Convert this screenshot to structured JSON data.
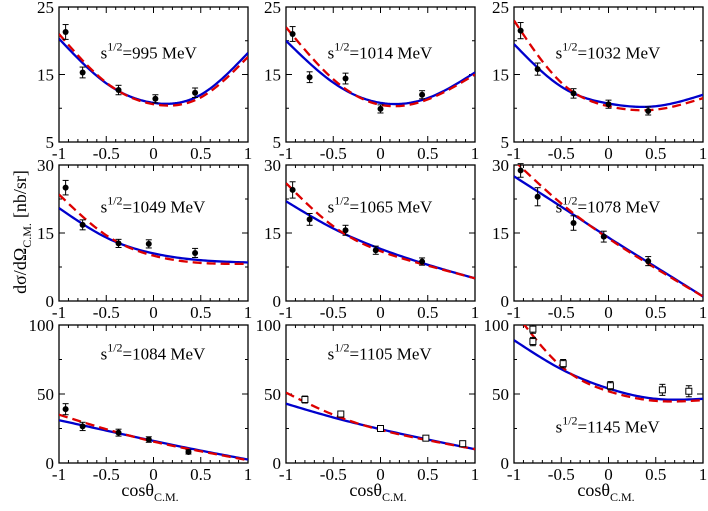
{
  "figure": {
    "ylabel": "dσ/dΩ",
    "ylabel_sub": "C.M.",
    "ylabel_unit": "[nb/sr]",
    "xlabel": "cosθ",
    "xlabel_sub": "C.M.",
    "colors": {
      "model_a": "#0000cc",
      "model_b": "#dd0000",
      "data": "#000000"
    }
  },
  "chart_data": [
    {
      "type": "line",
      "annotation_prefix": "s",
      "annotation_exp": "1/2",
      "annotation_value": "=995 MeV",
      "xlim": [
        -1,
        1
      ],
      "ylim": [
        5,
        25
      ],
      "xticks": [
        "-1",
        "-0.5",
        "0",
        "0.5",
        "1"
      ],
      "yticks": [
        "5",
        "15",
        "25"
      ],
      "series": [
        {
          "style": "solid",
          "color": "#0000cc",
          "x": [
            -1,
            -0.5,
            0,
            0.5,
            1
          ],
          "y": [
            20.3,
            13.7,
            10.8,
            12.0,
            18.2
          ]
        },
        {
          "style": "dashed",
          "color": "#dd0000",
          "x": [
            -1,
            -0.5,
            0,
            0.5,
            1
          ],
          "y": [
            21.0,
            13.8,
            10.6,
            11.6,
            17.6
          ]
        }
      ],
      "points": {
        "marker": "filled-circle",
        "x": [
          -0.93,
          -0.75,
          -0.37,
          0.02,
          0.44
        ],
        "y": [
          21.3,
          15.3,
          12.7,
          11.4,
          12.3
        ],
        "err": [
          1.1,
          0.8,
          0.7,
          0.6,
          0.7
        ]
      }
    },
    {
      "type": "line",
      "annotation_prefix": "s",
      "annotation_exp": "1/2",
      "annotation_value": "=1014 MeV",
      "xlim": [
        -1,
        1
      ],
      "ylim": [
        5,
        25
      ],
      "xticks": [
        "-1",
        "-0.5",
        "0",
        "0.5",
        "1"
      ],
      "yticks": [
        "5",
        "15",
        "25"
      ],
      "series": [
        {
          "style": "solid",
          "color": "#0000cc",
          "x": [
            -1,
            -0.5,
            0,
            0.5,
            1
          ],
          "y": [
            20.0,
            13.8,
            10.8,
            11.5,
            15.3
          ]
        },
        {
          "style": "dashed",
          "color": "#dd0000",
          "x": [
            -1,
            -0.5,
            0,
            0.5,
            1
          ],
          "y": [
            22.0,
            14.3,
            10.5,
            11.3,
            15.0
          ]
        }
      ],
      "points": {
        "marker": "filled-circle",
        "x": [
          -0.93,
          -0.75,
          -0.37,
          0.0,
          0.44
        ],
        "y": [
          21.0,
          14.6,
          14.4,
          9.9,
          12.0
        ],
        "err": [
          1.1,
          0.8,
          0.8,
          0.6,
          0.6
        ]
      }
    },
    {
      "type": "line",
      "annotation_prefix": "s",
      "annotation_exp": "1/2",
      "annotation_value": "=1032 MeV",
      "xlim": [
        -1,
        1
      ],
      "ylim": [
        5,
        25
      ],
      "xticks": [
        "-1",
        "-0.5",
        "0",
        "0.5",
        "1"
      ],
      "yticks": [
        "5",
        "15",
        "25"
      ],
      "series": [
        {
          "style": "solid",
          "color": "#0000cc",
          "x": [
            -1,
            -0.5,
            0,
            0.5,
            1
          ],
          "y": [
            19.5,
            13.2,
            10.7,
            10.3,
            12.0
          ]
        },
        {
          "style": "dashed",
          "color": "#dd0000",
          "x": [
            -1,
            -0.5,
            0,
            0.5,
            1
          ],
          "y": [
            23.0,
            13.8,
            10.3,
            9.8,
            11.5
          ]
        }
      ],
      "points": {
        "marker": "filled-circle",
        "x": [
          -0.93,
          -0.75,
          -0.37,
          0.0,
          0.42
        ],
        "y": [
          21.5,
          15.8,
          12.2,
          10.6,
          9.6
        ],
        "err": [
          1.2,
          0.9,
          0.7,
          0.6,
          0.6
        ]
      }
    },
    {
      "type": "line",
      "annotation_prefix": "s",
      "annotation_exp": "1/2",
      "annotation_value": "=1049 MeV",
      "xlim": [
        -1,
        1
      ],
      "ylim": [
        0,
        30
      ],
      "xticks": [
        "-1",
        "-0.5",
        "0",
        "0.5",
        "1"
      ],
      "yticks": [
        "0",
        "15",
        "30"
      ],
      "series": [
        {
          "style": "solid",
          "color": "#0000cc",
          "x": [
            -1,
            -0.5,
            0,
            0.5,
            1
          ],
          "y": [
            20.5,
            14.0,
            10.5,
            9.0,
            8.5
          ]
        },
        {
          "style": "dashed",
          "color": "#dd0000",
          "x": [
            -1,
            -0.5,
            0,
            0.5,
            1
          ],
          "y": [
            23.5,
            14.5,
            10.0,
            8.4,
            8.2
          ]
        }
      ],
      "points": {
        "marker": "filled-circle",
        "x": [
          -0.93,
          -0.75,
          -0.37,
          -0.05,
          0.44
        ],
        "y": [
          25.0,
          16.8,
          12.7,
          12.6,
          10.6
        ],
        "err": [
          1.6,
          1.1,
          0.9,
          0.9,
          1.0
        ]
      }
    },
    {
      "type": "line",
      "annotation_prefix": "s",
      "annotation_exp": "1/2",
      "annotation_value": "=1065 MeV",
      "xlim": [
        -1,
        1
      ],
      "ylim": [
        0,
        30
      ],
      "xticks": [
        "-1",
        "-0.5",
        "0",
        "0.5",
        "1"
      ],
      "yticks": [
        "0",
        "15",
        "30"
      ],
      "series": [
        {
          "style": "solid",
          "color": "#0000cc",
          "x": [
            -1,
            -0.5,
            0,
            0.5,
            1
          ],
          "y": [
            22.0,
            16.0,
            11.5,
            8.0,
            5.0
          ]
        },
        {
          "style": "dashed",
          "color": "#dd0000",
          "x": [
            -1,
            -0.5,
            0,
            0.5,
            1
          ],
          "y": [
            26.0,
            16.5,
            11.0,
            7.8,
            5.0
          ]
        }
      ],
      "points": {
        "marker": "filled-circle",
        "x": [
          -0.93,
          -0.75,
          -0.37,
          -0.05,
          0.44
        ],
        "y": [
          24.5,
          18.0,
          15.6,
          11.2,
          8.7
        ],
        "err": [
          1.8,
          1.3,
          1.1,
          0.9,
          0.8
        ]
      }
    },
    {
      "type": "line",
      "annotation_prefix": "s",
      "annotation_exp": "1/2",
      "annotation_value": "=1078 MeV",
      "xlim": [
        -1,
        1
      ],
      "ylim": [
        0,
        30
      ],
      "xticks": [
        "-1",
        "-0.5",
        "0",
        "0.5",
        "1"
      ],
      "yticks": [
        "0",
        "15",
        "30"
      ],
      "series": [
        {
          "style": "solid",
          "color": "#0000cc",
          "x": [
            -1,
            -0.5,
            0,
            0.5,
            1
          ],
          "y": [
            27.5,
            20.8,
            14.0,
            7.5,
            1.0
          ]
        },
        {
          "style": "dashed",
          "color": "#dd0000",
          "x": [
            -1,
            -0.5,
            0,
            0.5,
            1
          ],
          "y": [
            31.0,
            21.5,
            13.8,
            7.2,
            1.0
          ]
        }
      ],
      "points": {
        "marker": "filled-circle",
        "x": [
          -0.93,
          -0.75,
          -0.37,
          -0.05,
          0.42
        ],
        "y": [
          28.8,
          23.0,
          17.2,
          14.2,
          8.8
        ],
        "err": [
          1.5,
          2.0,
          1.6,
          1.2,
          1.0
        ]
      }
    },
    {
      "type": "line",
      "annotation_prefix": "s",
      "annotation_exp": "1/2",
      "annotation_value": "=1084 MeV",
      "xlim": [
        -1,
        1
      ],
      "ylim": [
        0,
        100
      ],
      "xticks": [
        "-1",
        "-0.5",
        "0",
        "0.5",
        "1"
      ],
      "yticks": [
        "0",
        "50",
        "100"
      ],
      "series": [
        {
          "style": "solid",
          "color": "#0000cc",
          "x": [
            -1,
            -0.5,
            0,
            0.5,
            1
          ],
          "y": [
            31.0,
            23.5,
            16.0,
            9.0,
            2.5
          ]
        },
        {
          "style": "dashed",
          "color": "#dd0000",
          "x": [
            -1,
            -0.5,
            0,
            0.5,
            1
          ],
          "y": [
            35.0,
            24.5,
            15.5,
            8.5,
            2.0
          ]
        }
      ],
      "points": {
        "marker": "filled-circle",
        "x": [
          -0.93,
          -0.75,
          -0.37,
          -0.05,
          0.37
        ],
        "y": [
          39.0,
          26.5,
          22.0,
          17.0,
          8.0
        ],
        "err": [
          4.0,
          3.0,
          2.5,
          2.0,
          1.5
        ]
      }
    },
    {
      "type": "line",
      "annotation_prefix": "s",
      "annotation_exp": "1/2",
      "annotation_value": "=1105 MeV",
      "xlim": [
        -1,
        1
      ],
      "ylim": [
        0,
        100
      ],
      "xticks": [
        "-1",
        "-0.5",
        "0",
        "0.5",
        "1"
      ],
      "yticks": [
        "0",
        "50",
        "100"
      ],
      "series": [
        {
          "style": "solid",
          "color": "#0000cc",
          "x": [
            -1,
            -0.5,
            0,
            0.5,
            1
          ],
          "y": [
            43.0,
            33.0,
            24.5,
            17.0,
            10.0
          ]
        },
        {
          "style": "dashed",
          "color": "#dd0000",
          "x": [
            -1,
            -0.5,
            0,
            0.5,
            1
          ],
          "y": [
            51.0,
            35.0,
            24.0,
            16.5,
            10.0
          ]
        }
      ],
      "points": {
        "marker": "open-square",
        "x": [
          -0.8,
          -0.42,
          0.0,
          0.48,
          0.87
        ],
        "y": [
          46.0,
          35.5,
          25.0,
          18.0,
          14.0
        ],
        "err": [
          2.5,
          2.0,
          1.5,
          1.5,
          1.5
        ]
      }
    },
    {
      "type": "line",
      "annotation_prefix": "s",
      "annotation_exp": "1/2",
      "annotation_value": "=1145 MeV",
      "xlim": [
        -1,
        1
      ],
      "ylim": [
        0,
        100
      ],
      "xticks": [
        "-1",
        "-0.5",
        "0",
        "0.5",
        "1"
      ],
      "yticks": [
        "0",
        "50",
        "100"
      ],
      "series": [
        {
          "style": "solid",
          "color": "#0000cc",
          "x": [
            -1,
            -0.5,
            0,
            0.5,
            1
          ],
          "y": [
            89.0,
            68.0,
            54.0,
            46.5,
            46.5
          ]
        },
        {
          "style": "dashed",
          "color": "#dd0000",
          "x": [
            -1,
            -0.5,
            0,
            0.5,
            1
          ],
          "y": [
            110.0,
            70.0,
            52.0,
            45.0,
            45.5
          ]
        }
      ],
      "points": {
        "marker": "open-square",
        "x": [
          -0.8,
          -0.8,
          -0.48,
          0.02,
          0.57,
          0.85
        ],
        "y": [
          97.0,
          88.0,
          72.0,
          56.0,
          53.0,
          52.0
        ],
        "err": [
          3.0,
          3.0,
          3.0,
          3.0,
          4.0,
          4.0
        ]
      }
    }
  ]
}
